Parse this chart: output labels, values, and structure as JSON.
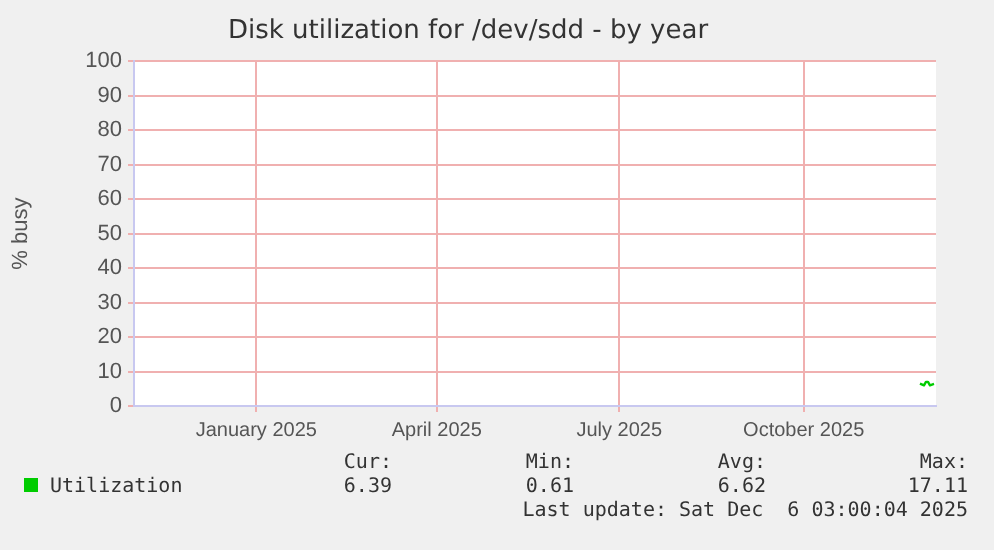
{
  "chart_data": {
    "type": "line",
    "title": "Disk utilization for /dev/sdd - by year",
    "ylabel": "% busy",
    "x": [
      "2025-11-28",
      "2025-11-30",
      "2025-12-01",
      "2025-12-02",
      "2025-12-03",
      "2025-12-05"
    ],
    "series": [
      {
        "name": "Utilization",
        "color": "#00cc00",
        "values": [
          6.5,
          6,
          7,
          7,
          6,
          6.4
        ]
      }
    ],
    "xlim": [
      "2024-11-01",
      "2025-12-06"
    ],
    "xticks": [
      {
        "value": "2025-01-01",
        "label": "January 2025"
      },
      {
        "value": "2025-04-01",
        "label": "April 2025"
      },
      {
        "value": "2025-07-01",
        "label": "July 2025"
      },
      {
        "value": "2025-10-01",
        "label": "October 2025"
      }
    ],
    "ylim": [
      0,
      100
    ],
    "yticks": [
      0,
      10,
      20,
      30,
      40,
      50,
      60,
      70,
      80,
      90,
      100
    ],
    "grid": true,
    "legend": "bottom",
    "marker": "none",
    "line_style": "solid",
    "annotations": [
      "Cur:",
      "Min:",
      "Avg:",
      "Max:",
      "6.39",
      "0.61",
      "6.62",
      "17.11",
      "Last update: Sat Dec  6 03:00:04 2025"
    ]
  }
}
